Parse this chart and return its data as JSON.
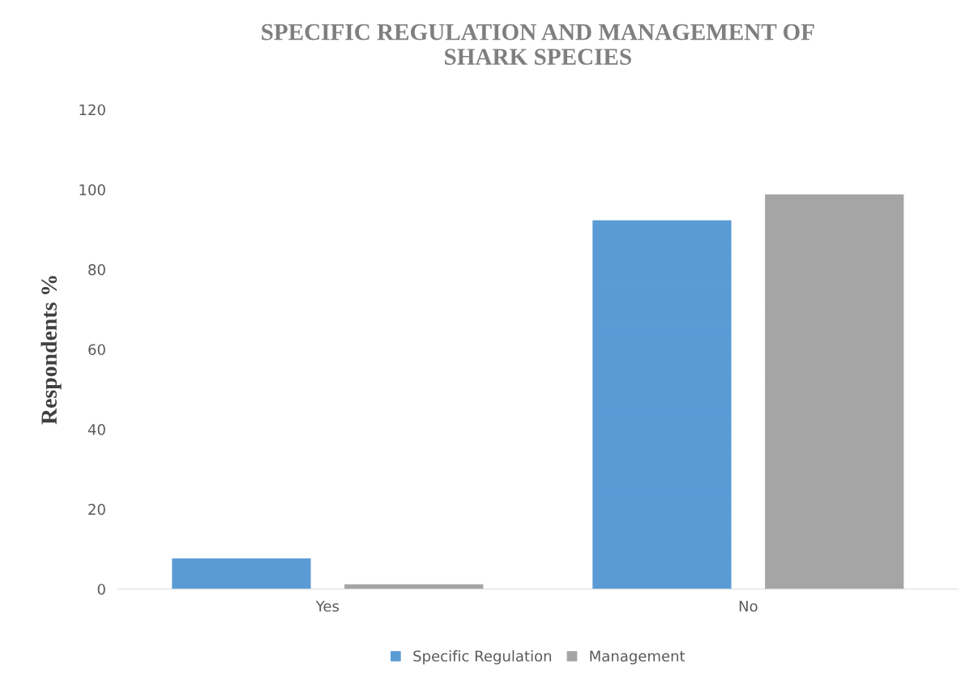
{
  "chart_data": {
    "type": "bar",
    "title": "SPECIFIC REGULATION AND MANAGEMENT OF\nSHARK SPECIES",
    "ylabel": "Respondents %",
    "categories": [
      "Yes",
      "No"
    ],
    "series": [
      {
        "name": "Specific Regulation",
        "color": "#5b9bd5",
        "values": [
          7.7,
          92.3
        ]
      },
      {
        "name": "Management",
        "color": "#a5a5a5",
        "values": [
          1.2,
          98.8
        ]
      }
    ],
    "ylim": [
      0,
      120
    ],
    "yticks": [
      0,
      20,
      40,
      60,
      80,
      100,
      120
    ],
    "grid": false,
    "legend": "bottom"
  }
}
